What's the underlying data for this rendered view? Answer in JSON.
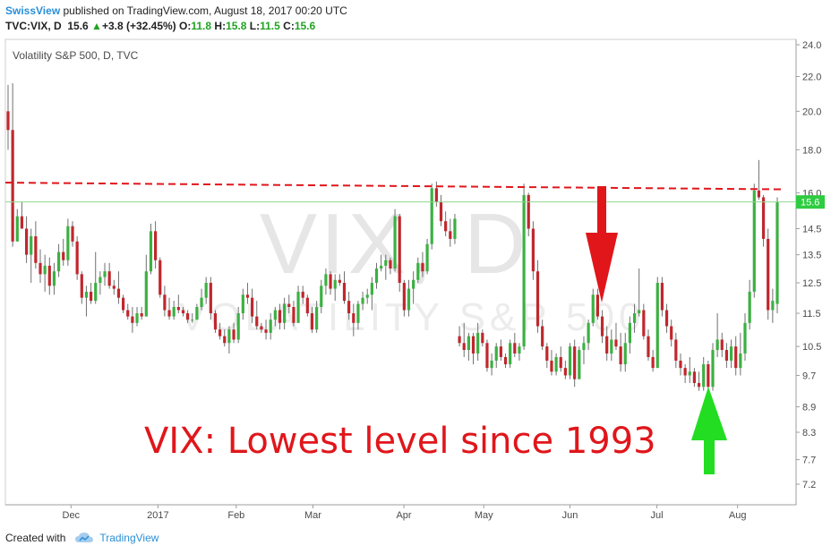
{
  "header": {
    "brand": "SwissView",
    "published": "published on TradingView.com, August 18, 2017 00:20 UTC",
    "symbol": "TVC:VIX, D",
    "last": "15.6",
    "change": "+3.8 (+32.45%)",
    "o_label": "O:",
    "o": "11.8",
    "h_label": "H:",
    "h": "15.8",
    "l_label": "L:",
    "l": "11.5",
    "c_label": "C:",
    "c": "15.6"
  },
  "footer": {
    "created": "Created with",
    "brand": "TradingView"
  },
  "annotation": "VIX: Lowest level since 1993",
  "watermark": {
    "symbol": "VIX, D",
    "name": "VOLATILITY S&P 500"
  },
  "chart_data": {
    "type": "candlestick",
    "title": "Volatility S&P 500, D, TVC",
    "y_axis": {
      "position": "right",
      "scale": "log",
      "ticks": [
        "24.0",
        "22.0",
        "20.0",
        "18.0",
        "16.0",
        "14.5",
        "13.5",
        "12.5",
        "11.5",
        "10.5",
        "9.7",
        "8.9",
        "8.3",
        "7.7",
        "7.2"
      ]
    },
    "x_axis": {
      "ticks": [
        "Dec",
        "2017",
        "Feb",
        "Mar",
        "Apr",
        "May",
        "Jun",
        "Jul",
        "Aug"
      ]
    },
    "last_price_label": "15.6",
    "colors": {
      "up": "#3cb043",
      "down": "#c0272d",
      "resistance": "#e0161b",
      "arrow_down": "#e0161b",
      "arrow_up": "#22dd22",
      "last_label_bg": "#2ecc40"
    },
    "resistance_line": {
      "from": 16.45,
      "to": 16.15,
      "style": "dashed"
    },
    "ohlc": [
      [
        20,
        21.5,
        18,
        19
      ],
      [
        19,
        21.6,
        13.8,
        14
      ],
      [
        14,
        15.3,
        14,
        15
      ],
      [
        15,
        15.6,
        14.5,
        14.5
      ],
      [
        14.5,
        15,
        13.2,
        13.5
      ],
      [
        13.5,
        14.5,
        12.5,
        14.2
      ],
      [
        14.2,
        14.8,
        13,
        13.2
      ],
      [
        13.2,
        13.7,
        12.5,
        12.8
      ],
      [
        12.8,
        13.5,
        12.2,
        13.1
      ],
      [
        13.1,
        13.4,
        12.1,
        12.4
      ],
      [
        12.4,
        13.2,
        12.1,
        12.9
      ],
      [
        12.9,
        13.9,
        12.7,
        13.6
      ],
      [
        13.6,
        14.1,
        13.1,
        13.3
      ],
      [
        13.3,
        14.9,
        13.1,
        14.6
      ],
      [
        14.6,
        14.8,
        13.8,
        14
      ],
      [
        14,
        14.2,
        12.6,
        12.8
      ],
      [
        12.8,
        12.9,
        11.8,
        12
      ],
      [
        12,
        12.4,
        11.4,
        12.2
      ],
      [
        12.2,
        12.5,
        11.8,
        11.9
      ],
      [
        11.9,
        13.6,
        11.8,
        12.5
      ],
      [
        12.5,
        12.9,
        12.1,
        12.7
      ],
      [
        12.7,
        13.2,
        12.4,
        12.9
      ],
      [
        12.9,
        13.2,
        12.3,
        12.4
      ],
      [
        12.4,
        12.6,
        12.1,
        12.3
      ],
      [
        12.3,
        12.9,
        11.8,
        12
      ],
      [
        12,
        12.1,
        11.5,
        11.6
      ],
      [
        11.6,
        11.8,
        11.3,
        11.4
      ],
      [
        11.4,
        11.7,
        10.9,
        11.2
      ],
      [
        11.2,
        11.7,
        11.1,
        11.5
      ],
      [
        11.5,
        11.7,
        11.3,
        11.4
      ],
      [
        11.4,
        13.5,
        11.4,
        12.9
      ],
      [
        12.9,
        14.7,
        12.8,
        14.4
      ],
      [
        14.4,
        14.8,
        13,
        13.3
      ],
      [
        13.3,
        13.4,
        12,
        12.1
      ],
      [
        12.1,
        12.4,
        11.4,
        11.6
      ],
      [
        11.6,
        12,
        11.3,
        11.4
      ],
      [
        11.4,
        11.9,
        11.3,
        11.7
      ],
      [
        11.7,
        12.1,
        11.5,
        11.6
      ],
      [
        11.6,
        11.7,
        11.4,
        11.5
      ],
      [
        11.5,
        11.6,
        11.2,
        11.3
      ],
      [
        11.3,
        11.5,
        11.2,
        11.3
      ],
      [
        11.3,
        11.8,
        11.3,
        11.7
      ],
      [
        11.7,
        12.3,
        11.6,
        12
      ],
      [
        12,
        12.7,
        11.8,
        12.5
      ],
      [
        12.5,
        12.7,
        11.3,
        11.5
      ],
      [
        11.5,
        11.6,
        10.9,
        11
      ],
      [
        11,
        11.2,
        10.7,
        10.8
      ],
      [
        10.8,
        11,
        10.5,
        10.6
      ],
      [
        10.6,
        11.1,
        10.3,
        11
      ],
      [
        11,
        11.2,
        10.6,
        10.7
      ],
      [
        10.7,
        11.7,
        10.6,
        11.5
      ],
      [
        11.5,
        12.3,
        11.3,
        12.1
      ],
      [
        12.1,
        12.5,
        11.8,
        12
      ],
      [
        12,
        12.3,
        11.2,
        11.4
      ],
      [
        11.4,
        11.9,
        11,
        11.1
      ],
      [
        11.1,
        11.2,
        10.9,
        11
      ],
      [
        11,
        11.3,
        10.7,
        10.9
      ],
      [
        10.9,
        11.5,
        10.7,
        11.3
      ],
      [
        11.3,
        11.7,
        11.1,
        11.6
      ],
      [
        11.6,
        11.8,
        11,
        11.2
      ],
      [
        11.2,
        12,
        11,
        11.8
      ],
      [
        11.8,
        12.1,
        11.5,
        11.7
      ],
      [
        11.7,
        11.9,
        11.1,
        11.2
      ],
      [
        11.2,
        12.4,
        11.2,
        12.2
      ],
      [
        12.2,
        12.4,
        11.8,
        12
      ],
      [
        12,
        12.1,
        11.4,
        11.5
      ],
      [
        11.5,
        11.7,
        10.9,
        11
      ],
      [
        11,
        11.9,
        10.9,
        11.7
      ],
      [
        11.7,
        12.6,
        11.5,
        12.4
      ],
      [
        12.4,
        13,
        12.1,
        12.8
      ],
      [
        12.8,
        12.9,
        12.1,
        12.3
      ],
      [
        12.3,
        12.8,
        11.9,
        12.6
      ],
      [
        12.6,
        12.8,
        12.4,
        12.5
      ],
      [
        12.5,
        12.9,
        11.8,
        11.9
      ],
      [
        11.9,
        12.2,
        11.3,
        11.5
      ],
      [
        11.5,
        11.8,
        10.8,
        11.2
      ],
      [
        11.2,
        11.9,
        11,
        11.8
      ],
      [
        11.8,
        12.2,
        11.6,
        12
      ],
      [
        12,
        12.3,
        11.8,
        12.1
      ],
      [
        12.1,
        12.7,
        11.6,
        12.5
      ],
      [
        12.5,
        13.2,
        12.3,
        13
      ],
      [
        13,
        13.5,
        12.9,
        13.1
      ],
      [
        13.1,
        13.5,
        12.6,
        13.3
      ],
      [
        13.3,
        13.4,
        12.8,
        13
      ],
      [
        13,
        15.3,
        12.9,
        15
      ],
      [
        15,
        15.1,
        12.2,
        12.5
      ],
      [
        12.5,
        12.6,
        11.4,
        11.6
      ],
      [
        11.6,
        12.6,
        11.4,
        12.3
      ],
      [
        12.3,
        12.9,
        11.8,
        12.6
      ],
      [
        12.6,
        13.4,
        12.5,
        13.2
      ],
      [
        13.2,
        13.6,
        12.7,
        12.9
      ],
      [
        12.9,
        14.1,
        12.8,
        13.9
      ],
      [
        13.9,
        16.4,
        13.7,
        16.2
      ],
      [
        16.2,
        16.5,
        15.4,
        15.6
      ],
      [
        15.6,
        15.9,
        14.6,
        14.8
      ],
      [
        14.8,
        15.2,
        14.2,
        14.4
      ],
      [
        14.4,
        14.9,
        13.8,
        14.1
      ],
      [
        14.1,
        15.1,
        13.9,
        14.9
      ],
      [
        10.8,
        11.1,
        10.5,
        10.6
      ],
      [
        10.6,
        11.2,
        10.2,
        10.4
      ],
      [
        10.4,
        10.9,
        10.1,
        10.8
      ],
      [
        10.8,
        10.9,
        10,
        10.3
      ],
      [
        10.3,
        11.2,
        10.1,
        10.9
      ],
      [
        10.9,
        11,
        10.5,
        10.6
      ],
      [
        10.6,
        10.7,
        9.8,
        9.9
      ],
      [
        9.9,
        10.3,
        9.7,
        10.1
      ],
      [
        10.1,
        10.6,
        9.9,
        10.5
      ],
      [
        10.5,
        10.7,
        10.1,
        10.2
      ],
      [
        10.2,
        10.3,
        9.9,
        10
      ],
      [
        10,
        10.7,
        9.9,
        10.6
      ],
      [
        10.6,
        10.9,
        10.2,
        10.3
      ],
      [
        10.3,
        10.6,
        10.1,
        10.5
      ],
      [
        10.5,
        16.4,
        10.4,
        15.9
      ],
      [
        15.9,
        16,
        14.2,
        14.5
      ],
      [
        14.5,
        14.8,
        12.6,
        12.9
      ],
      [
        12.9,
        13.3,
        10.9,
        11.1
      ],
      [
        11.1,
        11.3,
        10.4,
        10.5
      ],
      [
        10.5,
        10.6,
        9.9,
        10.1
      ],
      [
        10.1,
        10.4,
        9.7,
        9.8
      ],
      [
        9.8,
        10.3,
        9.7,
        10.2
      ],
      [
        10.2,
        10.5,
        9.8,
        9.9
      ],
      [
        9.9,
        10.1,
        9.6,
        9.7
      ],
      [
        9.7,
        10.6,
        9.6,
        10.5
      ],
      [
        10.5,
        10.7,
        9.4,
        9.6
      ],
      [
        9.6,
        10.5,
        9.6,
        10.4
      ],
      [
        10.4,
        10.8,
        10,
        10.6
      ],
      [
        10.6,
        11.3,
        10.4,
        11.2
      ],
      [
        11.2,
        12.3,
        11.1,
        12.1
      ],
      [
        12.1,
        12.3,
        11.3,
        11.4
      ],
      [
        11.4,
        11.6,
        10.6,
        10.8
      ],
      [
        10.8,
        11.1,
        10.1,
        10.3
      ],
      [
        10.3,
        11,
        10.1,
        10.7
      ],
      [
        10.7,
        11.2,
        10.4,
        10.5
      ],
      [
        10.5,
        10.9,
        9.8,
        10
      ],
      [
        10,
        10.9,
        9.8,
        10.6
      ],
      [
        10.6,
        11.4,
        10.3,
        11.2
      ],
      [
        11.2,
        11.8,
        10.9,
        11.5
      ],
      [
        11.5,
        13,
        11.4,
        11.6
      ],
      [
        11.6,
        11.8,
        10.7,
        10.8
      ],
      [
        10.8,
        11,
        10.1,
        10.2
      ],
      [
        10.2,
        10.4,
        9.8,
        9.9
      ],
      [
        9.9,
        12.7,
        9.9,
        12.5
      ],
      [
        12.5,
        12.7,
        11.4,
        11.6
      ],
      [
        11.6,
        11.8,
        10.9,
        11.1
      ],
      [
        11.1,
        11.3,
        10.5,
        10.7
      ],
      [
        10.7,
        10.9,
        9.9,
        10.1
      ],
      [
        10.1,
        10.3,
        9.7,
        9.9
      ],
      [
        9.9,
        10,
        9.5,
        9.7
      ],
      [
        9.7,
        10.2,
        9.5,
        9.8
      ],
      [
        9.8,
        9.9,
        9.4,
        9.5
      ],
      [
        9.5,
        9.8,
        9.3,
        9.4
      ],
      [
        9.4,
        10.2,
        9.3,
        10
      ],
      [
        10,
        10.1,
        9.2,
        9.4
      ],
      [
        9.4,
        10.6,
        9.3,
        10.4
      ],
      [
        10.4,
        11.5,
        10.2,
        10.7
      ],
      [
        10.7,
        10.9,
        10.2,
        10.4
      ],
      [
        10.4,
        10.6,
        9.9,
        10.1
      ],
      [
        10.1,
        10.7,
        9.9,
        10.5
      ],
      [
        10.5,
        10.8,
        9.7,
        9.9
      ],
      [
        9.9,
        10.9,
        9.7,
        10.3
      ],
      [
        10.3,
        11.5,
        10.1,
        11.2
      ],
      [
        11.2,
        12.6,
        11,
        12.2
      ],
      [
        12.2,
        16.4,
        12,
        16.1
      ],
      [
        16.1,
        17.5,
        15.7,
        15.8
      ],
      [
        15.8,
        15.9,
        13.8,
        14.1
      ],
      [
        14.1,
        14.5,
        11.3,
        11.6
      ],
      [
        11.6,
        12.3,
        11.2,
        11.9
      ],
      [
        11.8,
        15.8,
        11.5,
        15.6
      ]
    ]
  }
}
